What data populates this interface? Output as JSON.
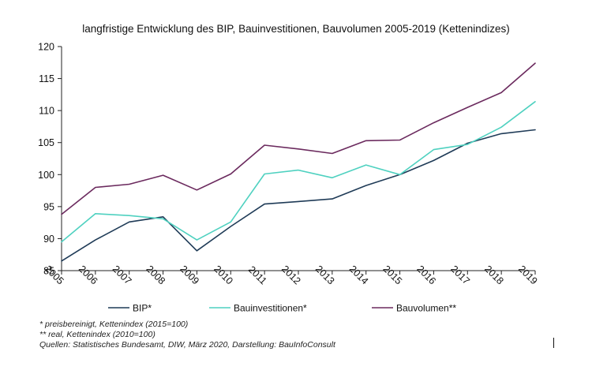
{
  "chart_data": {
    "type": "line",
    "title": "langfristige Entwicklung des BIP, Bauinvestitionen, Bauvolumen 2005-2019 (Kettenindizes)",
    "categories": [
      "2005",
      "2006",
      "2007",
      "2008",
      "2009",
      "2010",
      "2011",
      "2012",
      "2013",
      "2014",
      "2015",
      "2016",
      "2017",
      "2018",
      "2019"
    ],
    "ylim": [
      85,
      120
    ],
    "yticks": [
      "85",
      "90",
      "95",
      "100",
      "105",
      "110",
      "115",
      "120"
    ],
    "grid": false,
    "legend_position": "bottom",
    "series": [
      {
        "name": "BIP*",
        "color": "#1f3b57",
        "values": [
          86.5,
          89.8,
          92.6,
          93.4,
          88.1,
          91.9,
          95.4,
          95.8,
          96.2,
          98.3,
          100.0,
          102.2,
          104.9,
          106.4,
          107.0
        ]
      },
      {
        "name": "Bauinvestitionen*",
        "color": "#4fd1c0",
        "values": [
          89.5,
          93.9,
          93.6,
          93.1,
          89.8,
          92.6,
          100.1,
          100.7,
          99.5,
          101.5,
          100.0,
          103.9,
          104.7,
          107.4,
          111.4
        ]
      },
      {
        "name": "Bauvolumen**",
        "color": "#6b2a5e",
        "values": [
          93.8,
          98.0,
          98.5,
          99.9,
          97.6,
          100.1,
          104.6,
          104.0,
          103.3,
          105.3,
          105.4,
          108.1,
          110.5,
          112.8,
          117.4
        ]
      }
    ]
  },
  "footnotes": {
    "note1": "* preisbereinigt, Kettenindex (2015=100)",
    "note2": "** real, Kettenindex (2010=100)",
    "source": "Quellen: Statistisches Bundesamt, DIW, März 2020, Darstellung: BauInfoConsult"
  }
}
